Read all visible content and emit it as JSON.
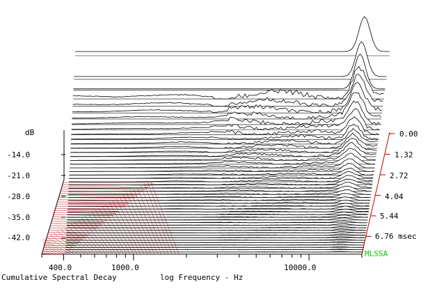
{
  "chart_data": {
    "type": "waterfall",
    "title": "Cumulative Spectral Decay",
    "xlabel": "log Frequency - Hz",
    "ylabel": "dB",
    "x_scale": "log",
    "x_tick_labels": [
      "400.0",
      "1000.0",
      "10000.0"
    ],
    "x_ticks": [
      400,
      1000,
      10000
    ],
    "y_tick_labels": [
      "-14.0",
      "-21.0",
      "-28.0",
      "-35.0",
      "-42.0"
    ],
    "y_ticks": [
      -14,
      -21,
      -28,
      -35,
      -42
    ],
    "z_tick_labels": [
      "0.00",
      "1.32",
      "2.72",
      "4.04",
      "5.44",
      "6.76 msec"
    ],
    "z_ticks_msec": [
      0.0,
      1.32,
      2.72,
      4.04,
      5.44,
      6.76
    ],
    "brand": "MLSSA",
    "slices": 48,
    "colors": {
      "trace": "#000000",
      "time_axis": "#c00000",
      "brand": "#00d000"
    }
  }
}
